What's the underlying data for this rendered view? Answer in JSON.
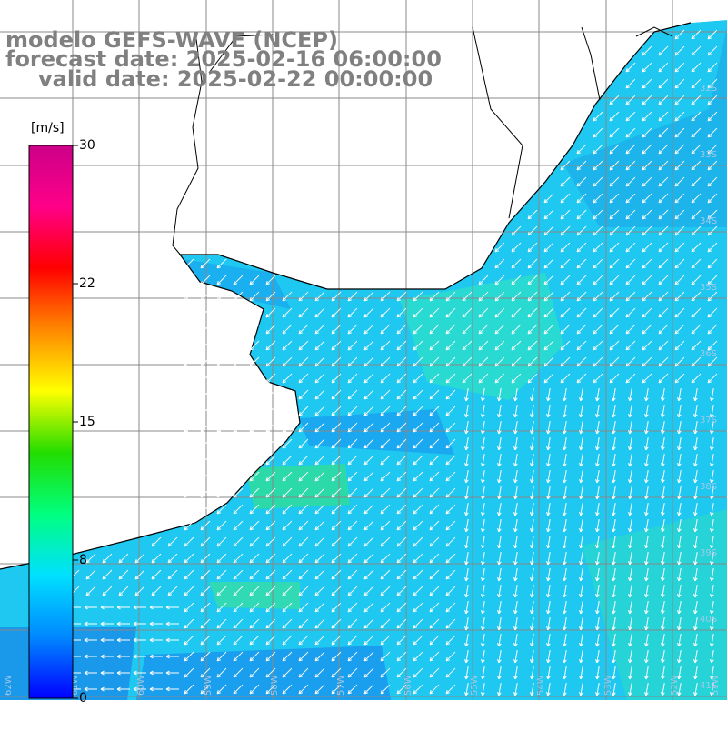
{
  "title": {
    "model": "modelo GEFS-WAVE (NCEP)",
    "forecast": "forecast date: 2025-02-16 06:00:00",
    "valid": "valid date: 2025-02-22 00:00:00"
  },
  "colorbar": {
    "unit": "[m/s]",
    "ticks": [
      "30",
      "22",
      "15",
      "8",
      "0"
    ],
    "tick_values": [
      30,
      22,
      15,
      8,
      0
    ],
    "colors": [
      "#0000ff",
      "#0088ff",
      "#00e0ff",
      "#00ff80",
      "#22dd00",
      "#ffff00",
      "#ff8800",
      "#ff0000",
      "#ff0088",
      "#cc0088"
    ]
  },
  "map": {
    "land_color": "#ffffff",
    "coast_color": "#000000",
    "grid_color": "#888888",
    "arrow_color": "#ffffff",
    "lat_labels": [
      "32S",
      "33S",
      "34S",
      "35S",
      "36S",
      "37S",
      "38S",
      "39S",
      "40S",
      "41S"
    ],
    "lon_labels": [
      "62W",
      "61W",
      "60W",
      "59W",
      "58W",
      "57W",
      "56W",
      "55W",
      "54W",
      "53W",
      "52W",
      "51W"
    ]
  }
}
